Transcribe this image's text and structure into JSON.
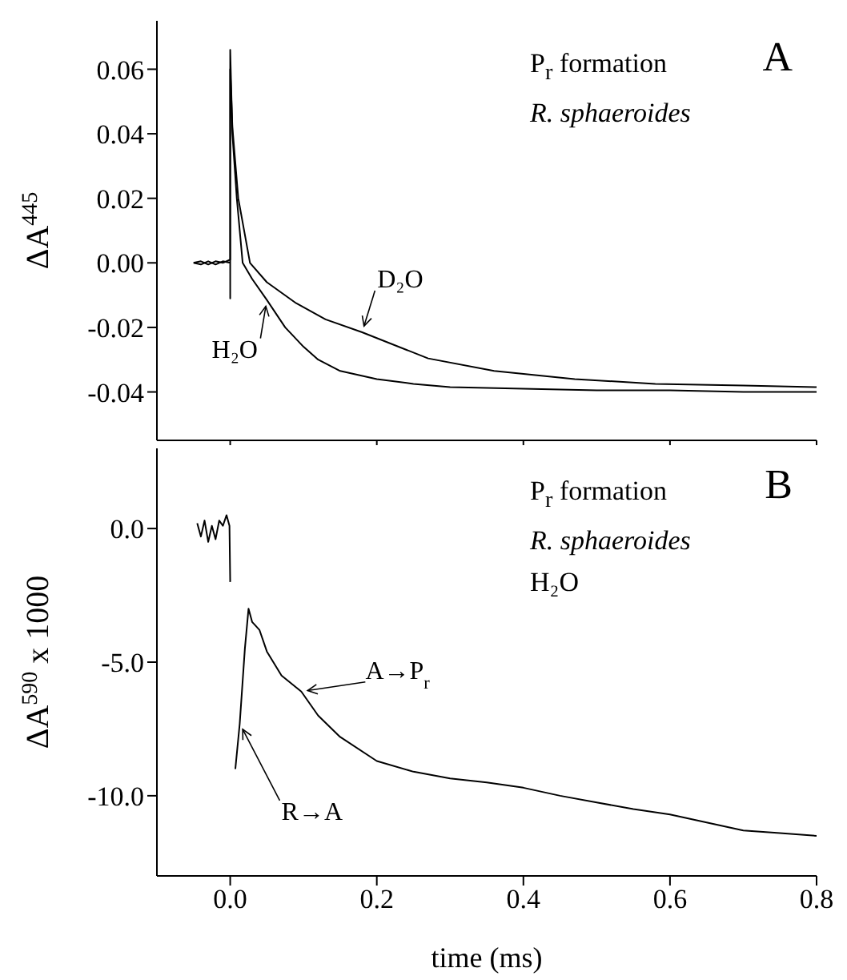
{
  "chart_data": [
    {
      "type": "line",
      "ylabel": "ΔA$^{445}$",
      "annotations": [
        "P$_{r}$ formation",
        "R. sphaeroides",
        "A"
      ],
      "xlim": [
        -0.1,
        0.8
      ],
      "xticks": [
        0,
        0.2,
        0.4,
        0.6,
        0.8
      ],
      "ylim": [
        -0.055,
        0.075
      ],
      "yticks": [
        -0.04,
        -0.02,
        {
          "value": 0,
          "label": "0.00"
        },
        0.02,
        0.04,
        0.06
      ],
      "tick_labels": "y",
      "marker": "none",
      "series": [
        {
          "name": "D₂O",
          "color": "#000000",
          "x": [
            -0.05,
            -0.04,
            -0.03,
            -0.02,
            -0.01,
            0,
            0,
            0.003,
            0.011,
            0.027,
            0.05,
            0.09,
            0.13,
            0.18,
            0.27,
            0.36,
            0.47,
            0.58,
            0.7,
            0.8
          ],
          "values": [
            0,
            0.0005,
            -0.0005,
            0.0005,
            0,
            0.001,
            0.06,
            0.042,
            0.02,
            0,
            -0.006,
            -0.0125,
            -0.0175,
            -0.0215,
            -0.0296,
            -0.0335,
            -0.036,
            -0.0375,
            -0.038,
            -0.0385
          ]
        },
        {
          "name": "H₂O",
          "color": "#000000",
          "x": [
            -0.05,
            -0.04,
            -0.03,
            -0.02,
            -0.01,
            0,
            0,
            0,
            0.003,
            0.009,
            0.017,
            0.03,
            0.05,
            0.075,
            0.1,
            0.12,
            0.15,
            0.2,
            0.25,
            0.3,
            0.4,
            0.5,
            0.6,
            0.7,
            0.8
          ],
          "values": [
            0,
            -0.0005,
            0.0005,
            -0.0005,
            0.0005,
            0,
            -0.011,
            0.066,
            0.04,
            0.02,
            0,
            -0.005,
            -0.0115,
            -0.02,
            -0.026,
            -0.03,
            -0.0335,
            -0.036,
            -0.0375,
            -0.0385,
            -0.039,
            -0.0395,
            -0.0395,
            -0.04,
            -0.04
          ]
        }
      ]
    },
    {
      "type": "line",
      "xlabel": "time (ms)",
      "ylabel": "ΔA$^{590}$ x 1000",
      "annotations": [
        "P$_{r}$ formation",
        "R. sphaeroides",
        "H₂O",
        {
          "text": "A→P$_{r}$",
          "x": 0.097,
          "y": -6.1
        },
        {
          "text": "R→A",
          "x": 0.013,
          "y": -7.3
        },
        "B"
      ],
      "xlim": [
        -0.1,
        0.8
      ],
      "xticks": [
        {
          "value": 0,
          "label": "0.0"
        },
        0.2,
        0.4,
        0.6,
        0.8
      ],
      "ylim": [
        -13,
        3
      ],
      "yticks": [
        {
          "value": -10,
          "label": "-10.0"
        },
        {
          "value": -5,
          "label": "-5.0"
        },
        {
          "value": 0,
          "label": "0.0"
        }
      ],
      "marker": "none",
      "series": [
        {
          "color": "#000000",
          "x": [
            -0.045,
            -0.04,
            -0.035,
            -0.03,
            -0.025,
            -0.02,
            -0.015,
            -0.01,
            -0.005,
            -0.001,
            0,
            0.001,
            0.005,
            0.007,
            0.013,
            0.02,
            0.025,
            0.03,
            0.04,
            0.05,
            0.07,
            0.097,
            0.12,
            0.15,
            0.2,
            0.25,
            0.3,
            0.35,
            0.4,
            0.45,
            0.5,
            0.55,
            0.6,
            0.65,
            0.7,
            0.75,
            0.8
          ],
          "values": [
            0.2,
            -0.3,
            0.3,
            -0.5,
            0.1,
            -0.4,
            0.3,
            0.1,
            0.5,
            0.1,
            -2,
            null,
            null,
            -9,
            -7.3,
            -4.5,
            -3,
            -3.5,
            -3.8,
            -4.6,
            -5.5,
            -6.1,
            -7,
            -7.8,
            -8.7,
            -9.1,
            -9.35,
            -9.5,
            -9.7,
            -10,
            -10.25,
            -10.5,
            -10.7,
            -11,
            -11.3,
            -11.4,
            -11.5
          ]
        }
      ]
    }
  ]
}
